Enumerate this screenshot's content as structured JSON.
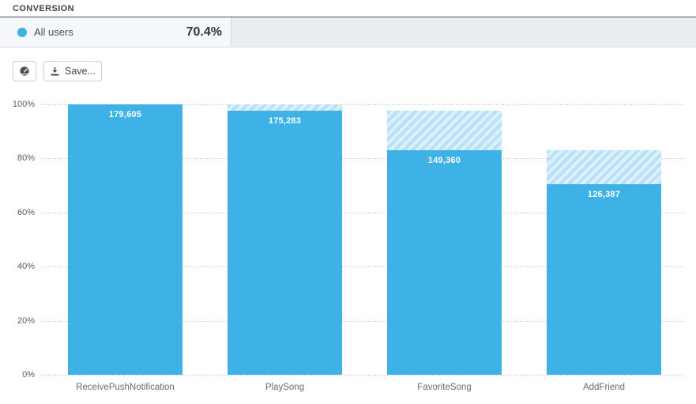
{
  "header": {
    "title": "CONVERSION"
  },
  "summary": {
    "segment_label": "All users",
    "conversion_rate": "70.4%",
    "legend_color": "#3eb1e7"
  },
  "toolbar": {
    "dashboard_button_icon": "gauge-icon",
    "save_label": "Save...",
    "save_icon": "download-icon"
  },
  "chart_data": {
    "type": "bar",
    "subtype": "funnel",
    "series_name": "All users",
    "categories": [
      "ReceivePushNotification",
      "PlaySong",
      "FavoriteSong",
      "AddFriend"
    ],
    "values": [
      179605,
      175283,
      149360,
      126387
    ],
    "value_labels": [
      "179,605",
      "175,283",
      "149,360",
      "126,387"
    ],
    "percent_of_first": [
      100.0,
      97.6,
      83.2,
      70.4
    ],
    "yticks": [
      "0%",
      "20%",
      "40%",
      "60%",
      "80%",
      "100%"
    ],
    "ylim": [
      0,
      100
    ],
    "grid": "horizontal-dotted",
    "legend_position": "top-row",
    "bar_color": "#3eb1e7",
    "dropoff_hatch_colors": [
      "#b7e1f6",
      "#ddf0fa"
    ]
  }
}
